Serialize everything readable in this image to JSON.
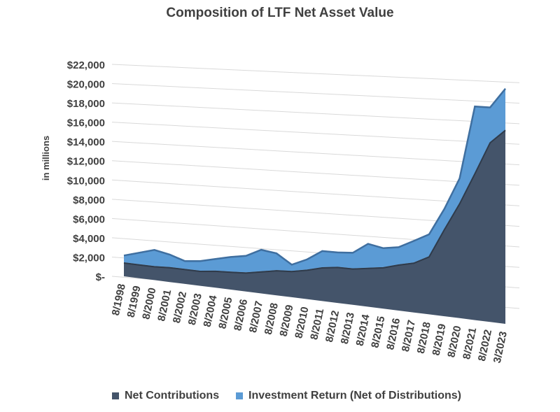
{
  "chart_data": {
    "type": "area",
    "title": "Composition of LTF Net Asset Value",
    "ylabel": "in millions",
    "xlabel": "",
    "ylim": [
      0,
      22000
    ],
    "y_ticks": [
      "$-",
      "$2,000",
      "$4,000",
      "$6,000",
      "$8,000",
      "$10,000",
      "$12,000",
      "$14,000",
      "$16,000",
      "$18,000",
      "$20,000",
      "$22,000"
    ],
    "categories": [
      "8/1998",
      "8/1999",
      "8/2000",
      "8/2001",
      "8/2002",
      "8/2003",
      "8/2004",
      "8/2005",
      "8/2006",
      "8/2007",
      "8/2008",
      "8/2009",
      "8/2010",
      "8/2011",
      "8/2012",
      "8/2013",
      "8/2014",
      "8/2015",
      "8/2016",
      "8/2017",
      "8/2018",
      "8/2019",
      "8/2020",
      "8/2021",
      "8/2022",
      "3/2023"
    ],
    "grid": true,
    "legend_position": "bottom",
    "perspective": "3d",
    "series": [
      {
        "name": "Net Contributions",
        "color": "#44546a",
        "values": [
          1500,
          1500,
          1500,
          1600,
          1600,
          1600,
          1800,
          1900,
          2000,
          2300,
          2600,
          2700,
          3000,
          3400,
          3600,
          3600,
          3800,
          4000,
          4400,
          4700,
          5400,
          8000,
          10400,
          13100,
          15800,
          16800
        ]
      },
      {
        "name": "Investment Return (Net of Distributions)",
        "color": "#5b9bd5",
        "values": [
          800,
          1300,
          1800,
          1400,
          900,
          1100,
          1300,
          1600,
          1800,
          2300,
          1800,
          700,
          1100,
          1700,
          1500,
          1600,
          2400,
          1900,
          1700,
          2100,
          2100,
          1900,
          2300,
          6000,
          3100,
          3600
        ]
      }
    ]
  }
}
